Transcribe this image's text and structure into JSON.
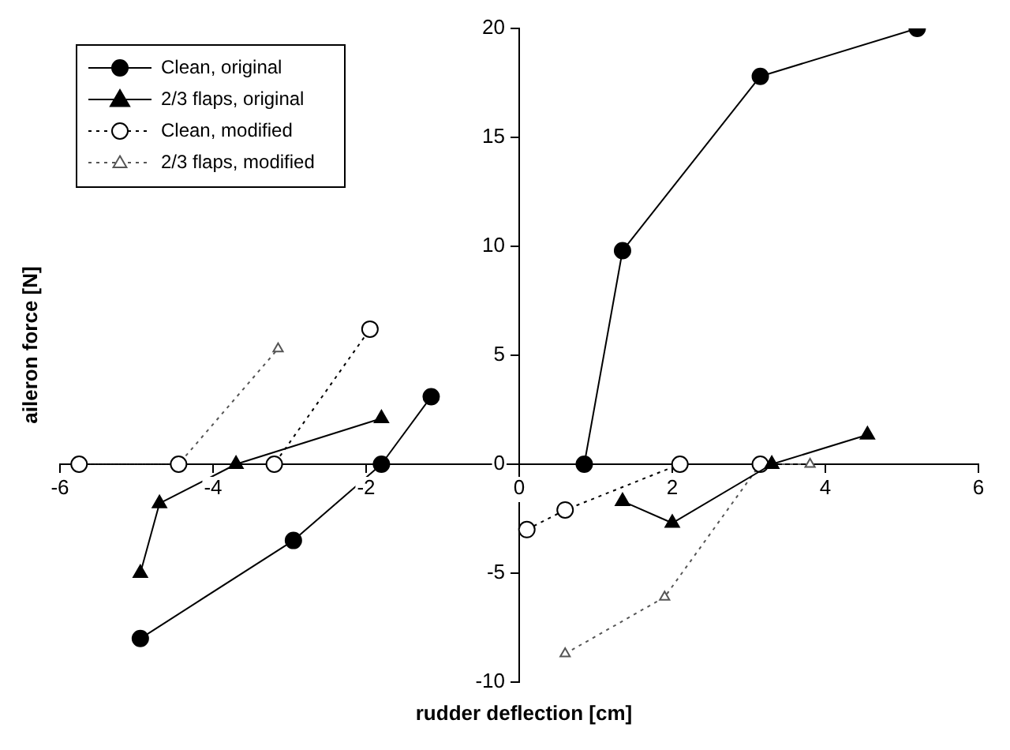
{
  "chart_data": {
    "type": "line",
    "xlabel": "rudder deflection [cm]",
    "ylabel": "aileron force [N]",
    "xlim": [
      -6,
      6
    ],
    "ylim": [
      -10,
      20
    ],
    "xticks": [
      -6,
      -4,
      -2,
      0,
      2,
      4,
      6
    ],
    "yticks": [
      -10,
      -5,
      0,
      5,
      10,
      15,
      20
    ],
    "legend": "top left",
    "series": [
      {
        "name": "Clean, original",
        "color": "#000000",
        "marker": "circle",
        "line_style": "solid",
        "x": [
          -4.95,
          -2.95,
          -1.8,
          -1.15,
          null,
          0.85,
          1.35,
          3.15,
          5.2
        ],
        "values": [
          -8,
          -3.5,
          0,
          3.1,
          null,
          0,
          9.8,
          17.8,
          20
        ]
      },
      {
        "name": "2/3 flaps, original",
        "color": "#000000",
        "marker": "triangle",
        "line_style": "solid",
        "x": [
          -4.95,
          -4.7,
          -3.7,
          -1.8,
          null,
          1.35,
          2,
          3.3,
          4.55
        ],
        "values": [
          -5,
          -1.8,
          0,
          2.1,
          null,
          -1.7,
          -2.7,
          0,
          1.35
        ]
      },
      {
        "name": "Clean, modified",
        "color": "#000000",
        "marker": "circle",
        "line_style": "dotted",
        "x": [
          -5.75,
          -4.45,
          -3.2,
          -1.95,
          null,
          0.1,
          0.6,
          2.1,
          3.15
        ],
        "values": [
          0,
          0,
          0,
          6.2,
          null,
          -3,
          -2.1,
          0,
          0
        ]
      },
      {
        "name": "2/3 flaps, modified",
        "color": "#555555",
        "marker": "triangle",
        "line_style": "dotted",
        "x": [
          -5.75,
          -4.45,
          -3.15,
          null,
          0.6,
          1.9,
          3.15,
          3.8
        ],
        "values": [
          0,
          0,
          5.3,
          null,
          -8.7,
          -6.1,
          0,
          0
        ]
      }
    ]
  }
}
